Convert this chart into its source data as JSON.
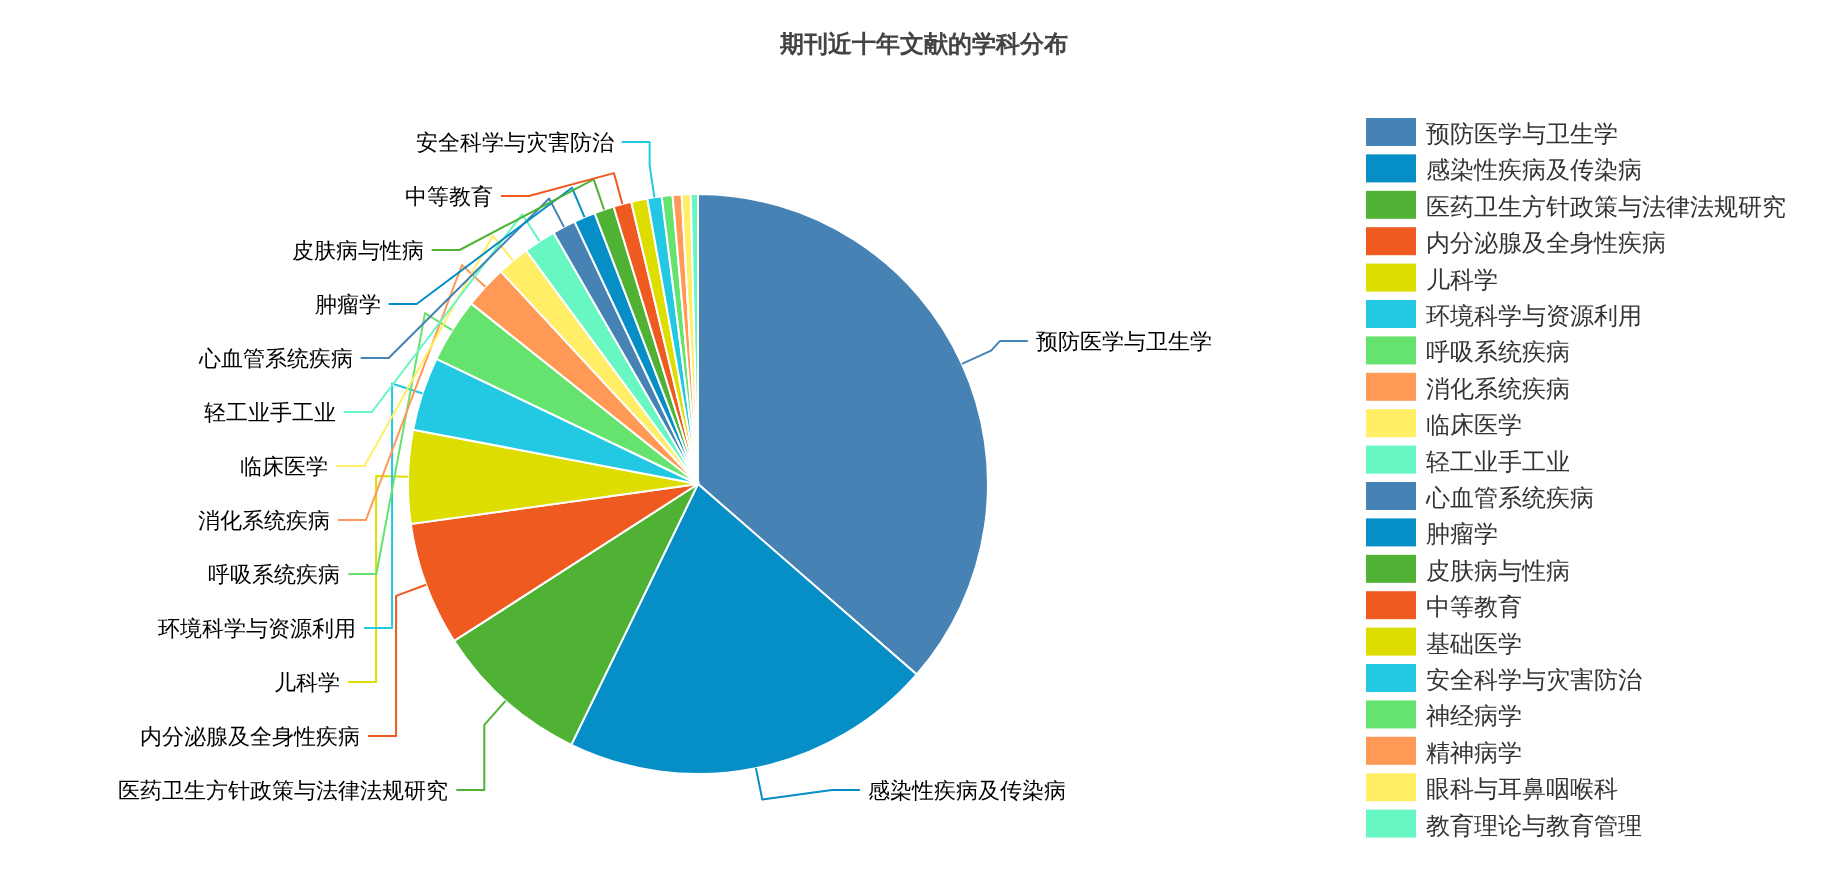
{
  "chart_data": {
    "type": "pie",
    "title": "期刊近十年文献的学科分布",
    "categories": [
      "预防医学与卫生学",
      "感染性疾病及传染病",
      "医药卫生方针政策与法律法规研究",
      "内分泌腺及全身性疾病",
      "儿科学",
      "环境科学与资源利用",
      "呼吸系统疾病",
      "消化系统疾病",
      "临床医学",
      "轻工业手工业",
      "心血管系统疾病",
      "肿瘤学",
      "皮肤病与性病",
      "中等教育",
      "基础医学",
      "安全科学与灾害防治",
      "神经病学",
      "精神病学",
      "眼科与耳鼻咽喉科",
      "教育理论与教育管理"
    ],
    "values": [
      36.4,
      20.8,
      8.7,
      6.9,
      5.2,
      4.1,
      3.6,
      2.4,
      1.8,
      1.8,
      1.3,
      1.2,
      1.1,
      1.0,
      0.9,
      0.8,
      0.6,
      0.5,
      0.5,
      0.4
    ],
    "colors": [
      "#4682b4",
      "#068ec6",
      "#4fb234",
      "#ee5a1f",
      "#dddd00",
      "#23c8e2",
      "#66e26e",
      "#ff9955",
      "#ffee66",
      "#66f7c2",
      "#4682b4",
      "#068ec6",
      "#4fb234",
      "#ee5a1f",
      "#dddd00",
      "#23c8e2",
      "#66e26e",
      "#ff9955",
      "#ffee66",
      "#66f7c2"
    ],
    "value_labels": [
      "预防医学与卫生学",
      "感染性疾病及传染病",
      "医药卫生方针政策与法律法规研究",
      "内分泌腺及全身性疾病",
      "儿科学",
      "环境科学与资源利用",
      "呼吸系统疾病",
      "消化系统疾病",
      "临床医学",
      "轻工业手工业",
      "心血管系统疾病",
      "肿瘤学",
      "皮肤病与性病",
      "中等教育",
      null,
      "安全科学与灾害防治",
      null,
      null,
      null,
      null
    ],
    "legend": "right"
  }
}
